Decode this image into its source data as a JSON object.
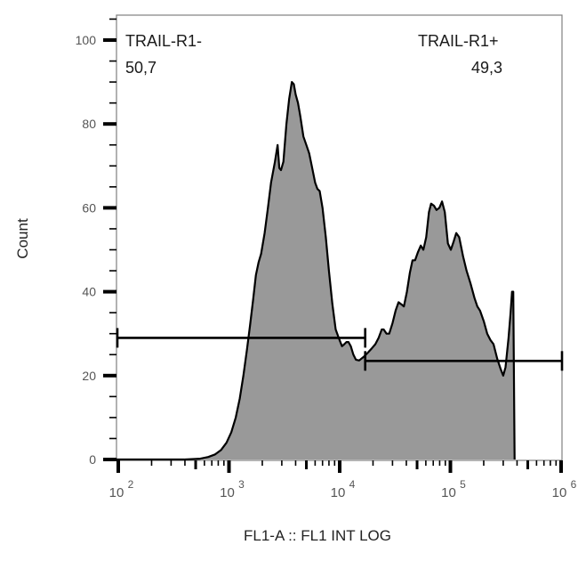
{
  "chart_data": {
    "type": "area",
    "subtype": "flow-cytometry-histogram",
    "xlabel": "FL1-A :: FL1 INT LOG",
    "ylabel": "Count",
    "xscale": "log",
    "xlim": [
      63,
      1050000
    ],
    "ylim": [
      0,
      105
    ],
    "yticks": [
      0,
      20,
      40,
      60,
      80,
      100
    ],
    "ytick_labels": [
      "0",
      "20",
      "40",
      "60",
      "80",
      "100"
    ],
    "xticks": [
      100,
      1000,
      10000,
      100000,
      1000000
    ],
    "xtick_labels": [
      {
        "base": "10",
        "exp": "2"
      },
      {
        "base": "10",
        "exp": "3"
      },
      {
        "base": "10",
        "exp": "4"
      },
      {
        "base": "10",
        "exp": "5"
      },
      {
        "base": "10",
        "exp": "6"
      }
    ],
    "grid": false,
    "fill_color": "#999999",
    "line_color": "#000000",
    "series": [
      {
        "name": "FL1-A histogram",
        "points": [
          [
            400,
            0
          ],
          [
            550,
            0.2
          ],
          [
            650,
            0.6
          ],
          [
            750,
            1.2
          ],
          [
            850,
            2.3
          ],
          [
            950,
            4
          ],
          [
            1050,
            6.5
          ],
          [
            1150,
            10
          ],
          [
            1250,
            14.5
          ],
          [
            1350,
            20
          ],
          [
            1450,
            26
          ],
          [
            1550,
            32
          ],
          [
            1650,
            38
          ],
          [
            1750,
            44
          ],
          [
            1850,
            47
          ],
          [
            1950,
            49
          ],
          [
            2100,
            54
          ],
          [
            2250,
            60
          ],
          [
            2400,
            66
          ],
          [
            2600,
            71
          ],
          [
            2750,
            75
          ],
          [
            2850,
            69.5
          ],
          [
            2950,
            69
          ],
          [
            3100,
            71
          ],
          [
            3300,
            80
          ],
          [
            3500,
            86
          ],
          [
            3700,
            90
          ],
          [
            3850,
            89.5
          ],
          [
            4000,
            87
          ],
          [
            4200,
            85
          ],
          [
            4400,
            82
          ],
          [
            4700,
            77
          ],
          [
            5000,
            75
          ],
          [
            5300,
            73
          ],
          [
            5600,
            70
          ],
          [
            6000,
            66
          ],
          [
            6300,
            64.5
          ],
          [
            6600,
            64
          ],
          [
            7000,
            60
          ],
          [
            7500,
            53
          ],
          [
            8000,
            45
          ],
          [
            8600,
            37
          ],
          [
            9200,
            31
          ],
          [
            9800,
            29
          ],
          [
            10500,
            27
          ],
          [
            11000,
            27.5
          ],
          [
            11500,
            28
          ],
          [
            12000,
            28
          ],
          [
            12600,
            27
          ],
          [
            13300,
            25
          ],
          [
            14000,
            23.8
          ],
          [
            15000,
            23.6
          ],
          [
            16500,
            24.5
          ],
          [
            18000,
            25.5
          ],
          [
            19500,
            26.5
          ],
          [
            21000,
            27.5
          ],
          [
            22500,
            29
          ],
          [
            24000,
            31
          ],
          [
            25000,
            31
          ],
          [
            26500,
            30
          ],
          [
            28000,
            30
          ],
          [
            30000,
            32.5
          ],
          [
            32000,
            35.5
          ],
          [
            34000,
            37.5
          ],
          [
            36000,
            37
          ],
          [
            38000,
            36.5
          ],
          [
            40500,
            40
          ],
          [
            43000,
            44.5
          ],
          [
            45500,
            47.5
          ],
          [
            48000,
            47.5
          ],
          [
            51000,
            49.5
          ],
          [
            54000,
            51
          ],
          [
            57000,
            50
          ],
          [
            60500,
            53
          ],
          [
            64000,
            59
          ],
          [
            67000,
            61
          ],
          [
            71000,
            60.5
          ],
          [
            75000,
            59.5
          ],
          [
            79500,
            60
          ],
          [
            84000,
            61.5
          ],
          [
            89000,
            59
          ],
          [
            95000,
            51.5
          ],
          [
            101000,
            50
          ],
          [
            107000,
            52
          ],
          [
            113000,
            54
          ],
          [
            120000,
            53
          ],
          [
            130000,
            48.5
          ],
          [
            140000,
            45
          ],
          [
            152000,
            42
          ],
          [
            165000,
            38.5
          ],
          [
            175000,
            36.5
          ],
          [
            185000,
            35.5
          ],
          [
            200000,
            33
          ],
          [
            215000,
            30
          ],
          [
            230000,
            28.5
          ],
          [
            245000,
            27.5
          ],
          [
            265000,
            24
          ],
          [
            285000,
            21.5
          ],
          [
            300000,
            20
          ],
          [
            315000,
            22
          ],
          [
            335000,
            29
          ],
          [
            350000,
            35
          ],
          [
            360000,
            40
          ],
          [
            370000,
            40
          ],
          [
            380000,
            0
          ]
        ],
        "x_pixel_decades": {
          "note": "shape traced from plot"
        }
      }
    ],
    "gates": [
      {
        "name": "TRAIL-R1-",
        "percent": "50,7",
        "x_start": 65,
        "x_end": 17000,
        "y": 29
      },
      {
        "name": "TRAIL-R1+",
        "percent": "49,3",
        "x_start": 17000,
        "x_end": 1000000,
        "y": 23.5
      }
    ],
    "annotations": [
      {
        "text": "TRAIL-R1-",
        "position": "top-left"
      },
      {
        "text": "50,7",
        "position": "top-left"
      },
      {
        "text": "TRAIL-R1+",
        "position": "top-right"
      },
      {
        "text": "49,3",
        "position": "top-right"
      }
    ]
  },
  "labels": {
    "gate_left_name": "TRAIL-R1-",
    "gate_left_value": "50,7",
    "gate_right_name": "TRAIL-R1+",
    "gate_right_value": "49,3",
    "x_axis_title": "FL1-A :: FL1 INT LOG",
    "y_axis_title": "Count"
  }
}
